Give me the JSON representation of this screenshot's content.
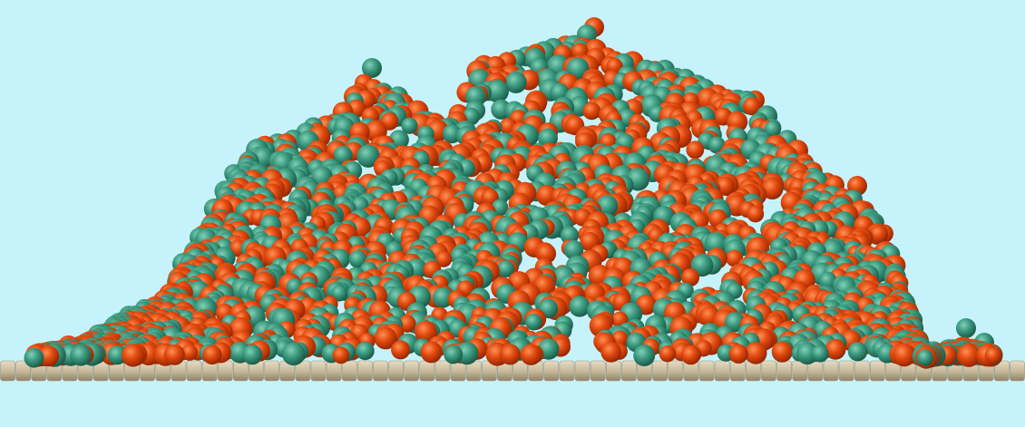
{
  "scene": {
    "background_color": "#c6f3fb",
    "substrate": {
      "bead_color": "#c9bb9c",
      "bead_shadow_color": "#8f8468",
      "bead_count": 66
    },
    "polymer_cluster": {
      "species": [
        {
          "color": "#e24a0f",
          "shadow_color": "#8e2300",
          "highlight_color": "#ff9056",
          "share": 0.52
        },
        {
          "color": "#3c9a80",
          "shadow_color": "#175542",
          "highlight_color": "#82d0b5",
          "share": 0.48
        }
      ]
    }
  }
}
